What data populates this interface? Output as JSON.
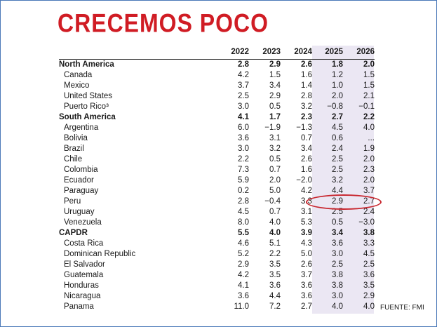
{
  "title": "CRECEMOS POCO",
  "source": "FUENTE: FMI",
  "years": [
    "2022",
    "2023",
    "2024",
    "2025",
    "2026"
  ],
  "rows": [
    {
      "name": "North America",
      "values": [
        "2.8",
        "2.9",
        "2.6",
        "1.8",
        "2.0"
      ]
    },
    {
      "name": "Canada",
      "values": [
        "4.2",
        "1.5",
        "1.6",
        "1.2",
        "1.5"
      ]
    },
    {
      "name": "Mexico",
      "values": [
        "3.7",
        "3.4",
        "1.4",
        "1.0",
        "1.5"
      ]
    },
    {
      "name": "United States",
      "values": [
        "2.5",
        "2.9",
        "2.8",
        "2.0",
        "2.1"
      ]
    },
    {
      "name": "Puerto Rico³",
      "values": [
        "3.0",
        "0.5",
        "3.2",
        "−0.8",
        "−0.1"
      ]
    },
    {
      "name": "South America",
      "values": [
        "4.1",
        "1.7",
        "2.3",
        "2.7",
        "2.2"
      ]
    },
    {
      "name": "Argentina",
      "values": [
        "6.0",
        "−1.9",
        "−1.3",
        "4.5",
        "4.0"
      ]
    },
    {
      "name": "Bolivia",
      "values": [
        "3.6",
        "3.1",
        "0.7",
        "0.6",
        "..."
      ]
    },
    {
      "name": "Brazil",
      "values": [
        "3.0",
        "3.2",
        "3.4",
        "2.4",
        "1.9"
      ]
    },
    {
      "name": "Chile",
      "values": [
        "2.2",
        "0.5",
        "2.6",
        "2.5",
        "2.0"
      ]
    },
    {
      "name": "Colombia",
      "values": [
        "7.3",
        "0.7",
        "1.6",
        "2.5",
        "2.3"
      ]
    },
    {
      "name": "Ecuador",
      "values": [
        "5.9",
        "2.0",
        "−2.0",
        "3.2",
        "2.0"
      ]
    },
    {
      "name": "Paraguay",
      "values": [
        "0.2",
        "5.0",
        "4.2",
        "4.4",
        "3.7"
      ]
    },
    {
      "name": "Peru",
      "values": [
        "2.8",
        "−0.4",
        "3.3",
        "2.9",
        "2.7"
      ]
    },
    {
      "name": "Uruguay",
      "values": [
        "4.5",
        "0.7",
        "3.1",
        "2.5",
        "2.4"
      ]
    },
    {
      "name": "Venezuela",
      "values": [
        "8.0",
        "4.0",
        "5.3",
        "0.5",
        "−3.0"
      ]
    },
    {
      "name": "CAPDR",
      "values": [
        "5.5",
        "4.0",
        "3.9",
        "3.4",
        "3.8"
      ]
    },
    {
      "name": "Costa Rica",
      "values": [
        "4.6",
        "5.1",
        "4.3",
        "3.6",
        "3.3"
      ]
    },
    {
      "name": "Dominican Republic",
      "values": [
        "5.2",
        "2.2",
        "5.0",
        "3.0",
        "4.5"
      ]
    },
    {
      "name": "El Salvador",
      "values": [
        "2.9",
        "3.5",
        "2.6",
        "2.5",
        "2.5"
      ]
    },
    {
      "name": "Guatemala",
      "values": [
        "4.2",
        "3.5",
        "3.7",
        "3.8",
        "3.6"
      ]
    },
    {
      "name": "Honduras",
      "values": [
        "4.1",
        "3.6",
        "3.6",
        "3.8",
        "3.5"
      ]
    },
    {
      "name": "Nicaragua",
      "values": [
        "3.6",
        "4.4",
        "3.6",
        "3.0",
        "2.9"
      ]
    },
    {
      "name": "Panama",
      "values": [
        "11.0",
        "7.2",
        "2.7",
        "4.0",
        "4.0"
      ]
    }
  ]
}
